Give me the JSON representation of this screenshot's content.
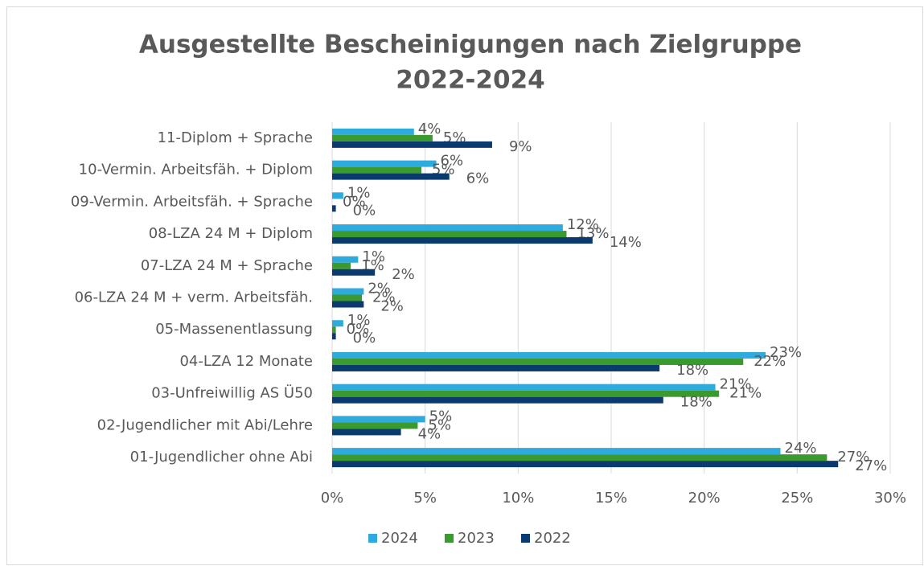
{
  "chart_data": {
    "type": "bar",
    "orientation": "horizontal",
    "title": [
      "Ausgestellte Bescheinigungen nach Zielgruppe",
      "2022-2024"
    ],
    "categories": [
      "11-Diplom + Sprache",
      "10-Vermin. Arbeitsfäh. + Diplom",
      "09-Vermin. Arbeitsfäh. + Sprache",
      "08-LZA 24 M + Diplom",
      "07-LZA 24 M + Sprache",
      "06-LZA 24 M + verm. Arbeitsfäh.",
      "05-Massenentlassung",
      "04-LZA 12 Monate",
      "03-Unfreiwillig AS Ü50",
      "02-Jugendlicher mit Abi/Lehre",
      "01-Jugendlicher ohne Abi"
    ],
    "series": [
      {
        "name": "2024",
        "color": "#2eaadc",
        "values": [
          4.4,
          5.6,
          0.6,
          12.4,
          1.4,
          1.7,
          0.6,
          23.3,
          20.6,
          5.0,
          24.1
        ],
        "value_labels": [
          "4%",
          "6%",
          "1%",
          "12%",
          "1%",
          "2%",
          "1%",
          "23%",
          "21%",
          "5%",
          "24%"
        ]
      },
      {
        "name": "2023",
        "color": "#3a9a2f",
        "values": [
          5.4,
          4.8,
          0,
          12.6,
          1.0,
          1.6,
          0.2,
          22.1,
          20.8,
          4.6,
          26.6
        ],
        "value_labels": [
          "5%",
          "5%",
          "0%",
          "13%",
          "1%",
          "2%",
          "0%",
          "22%",
          "21%",
          "5%",
          "27%"
        ]
      },
      {
        "name": "2022",
        "color": "#0b3a6e",
        "values": [
          8.6,
          6.3,
          0.2,
          14.0,
          2.3,
          1.7,
          0.2,
          17.6,
          17.8,
          3.7,
          27.2
        ],
        "value_labels": [
          "9%",
          "6%",
          "0%",
          "14%",
          "2%",
          "2%",
          "0%",
          "18%",
          "18%",
          "4%",
          "27%"
        ]
      }
    ],
    "xlim": [
      0,
      30
    ],
    "xticks": [
      {
        "value": 0,
        "label": "0%"
      },
      {
        "value": 5,
        "label": "5%"
      },
      {
        "value": 10,
        "label": "10%"
      },
      {
        "value": 15,
        "label": "15%"
      },
      {
        "value": 20,
        "label": "20%"
      },
      {
        "value": 25,
        "label": "25%"
      },
      {
        "value": 30,
        "label": "30%"
      }
    ],
    "grid": true,
    "legend": "bottom"
  }
}
